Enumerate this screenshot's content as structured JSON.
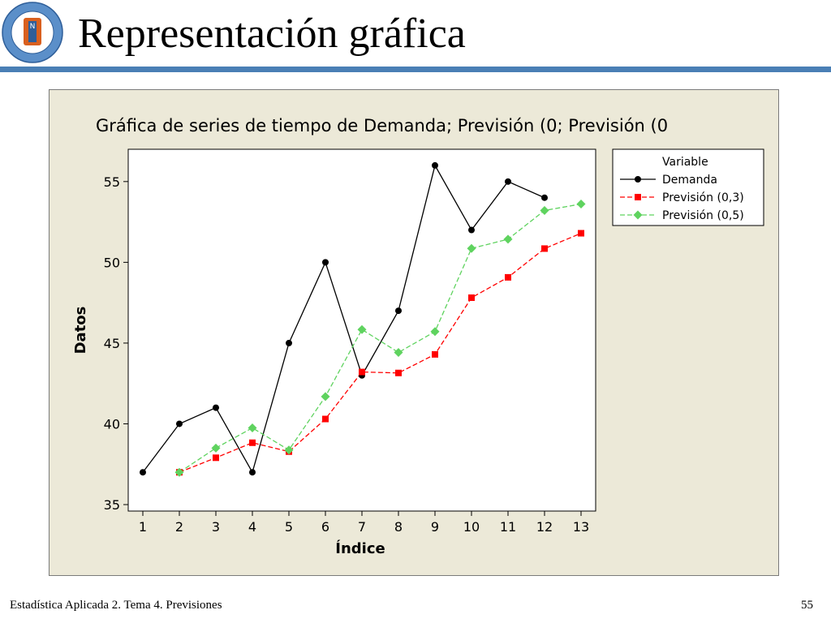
{
  "slide": {
    "title": "Representación gráfica",
    "footer_left": "Estadística Aplicada 2. Tema 4. Previsiones",
    "page_number": "55",
    "logo_letter": "N",
    "logo_ring_top": "UNIVERSIDAD CATÓLICA DEL NORTE",
    "logo_ring_bottom": "CHILE"
  },
  "colors": {
    "accent_rule": "#4a7fb5",
    "chart_background": "#ece9d8",
    "demanda": "#000000",
    "prevision_03": "#ff0000",
    "prevision_05": "#5fd35f"
  },
  "chart_data": {
    "type": "line",
    "title": "Gráfica de series de tiempo de Demanda; Previsión (0; Previsión (0",
    "xlabel": "Índice",
    "ylabel": "Datos",
    "x": [
      1,
      2,
      3,
      4,
      5,
      6,
      7,
      8,
      9,
      10,
      11,
      12,
      13
    ],
    "xlim": [
      0.6,
      13.4
    ],
    "ylim": [
      34.6,
      57.0
    ],
    "yticks": [
      35,
      40,
      45,
      50,
      55
    ],
    "legend": {
      "title": "Variable",
      "placement": "right-top"
    },
    "grid": false,
    "series": [
      {
        "name": "Demanda",
        "color": "#000000",
        "marker": "circle",
        "dash": false,
        "values": [
          37,
          40,
          41,
          37,
          45,
          50,
          43,
          47,
          56,
          52,
          55,
          54,
          null
        ]
      },
      {
        "name": "Previsión (0,3)",
        "color": "#ff0000",
        "marker": "square",
        "dash": true,
        "values": [
          null,
          37,
          37.9,
          38.83,
          38.28,
          40.3,
          43.21,
          43.15,
          44.3,
          47.81,
          49.07,
          50.85,
          51.8
        ]
      },
      {
        "name": "Previsión (0,5)",
        "color": "#5fd35f",
        "marker": "diamond",
        "dash": true,
        "values": [
          null,
          37,
          38.5,
          39.75,
          38.38,
          41.69,
          45.84,
          44.42,
          45.71,
          50.86,
          51.43,
          53.21,
          53.61
        ]
      }
    ]
  }
}
